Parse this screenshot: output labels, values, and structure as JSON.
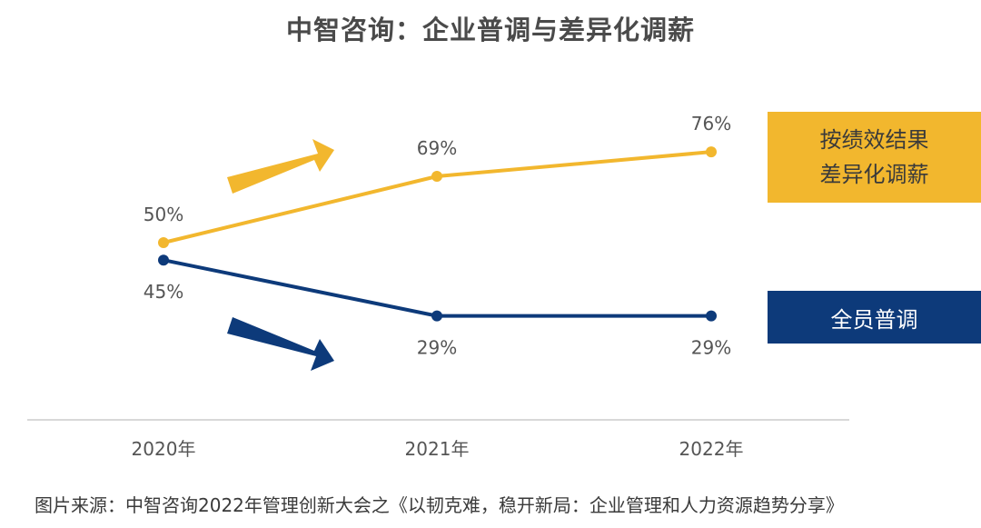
{
  "chart_data": {
    "type": "line",
    "title": "中智咨询：企业普调与差异化调薪",
    "categories": [
      "2020年",
      "2021年",
      "2022年"
    ],
    "ylim": [
      0,
      100
    ],
    "grid": false,
    "series": [
      {
        "name_lines": [
          "按绩效结果",
          "差异化调薪"
        ],
        "values": [
          50,
          69,
          76
        ],
        "labels": [
          "50%",
          "69%",
          "76%"
        ],
        "color": "#F2B72E",
        "trend": "up-arrow"
      },
      {
        "name": "全员普调",
        "values": [
          45,
          29,
          29
        ],
        "labels": [
          "45%",
          "29%",
          "29%"
        ],
        "color": "#0D3A7A",
        "trend": "down-arrow"
      }
    ]
  },
  "source_note": "图片来源：中智咨询2022年管理创新大会之《以韧克难，稳开新局：企业管理和人力资源趋势分享》",
  "colors": {
    "legend_yellow_bg": "#F2B72E",
    "legend_blue_bg": "#0D3A7A",
    "axis": "#cccccc"
  }
}
